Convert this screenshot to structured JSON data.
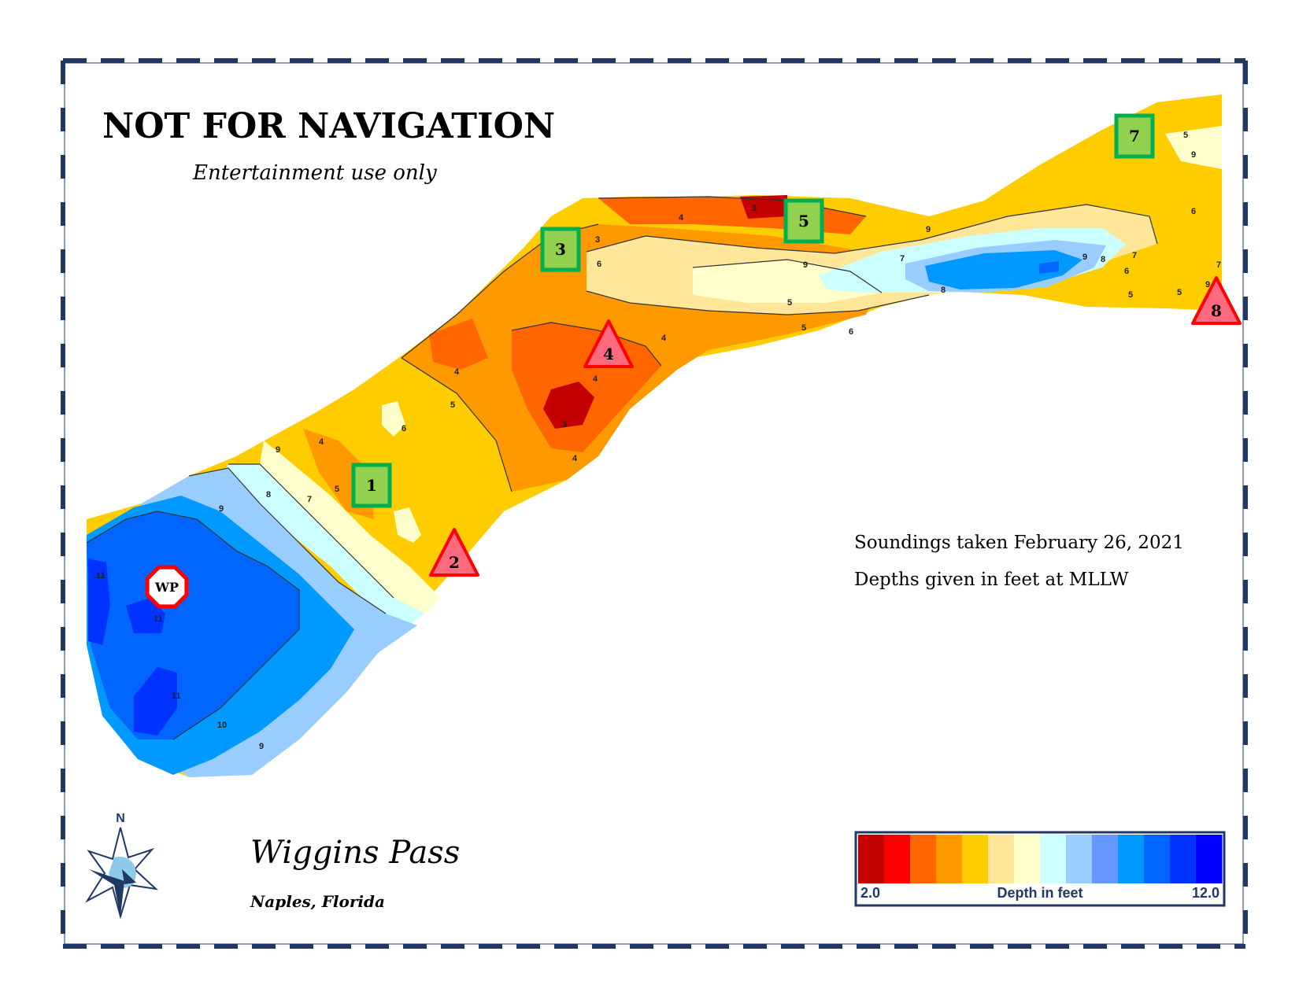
{
  "header": {
    "warning": "NOT FOR NAVIGATION",
    "subtitle": "Entertainment use only"
  },
  "place": {
    "name": "Wiggins Pass",
    "location": "Naples, Florida"
  },
  "notes": {
    "soundings": "Soundings taken February 26, 2021",
    "datum": "Depths given in feet at MLLW"
  },
  "compass": {
    "north_label": "N",
    "icon": "compass-rose-icon"
  },
  "legend": {
    "min_label": "2.0",
    "title": "Depth in feet",
    "max_label": "12.0",
    "min": 2.0,
    "max": 12.0,
    "colors": [
      "#c40000",
      "#ff0000",
      "#ff6600",
      "#ff9900",
      "#ffcc00",
      "#ffe699",
      "#ffffcc",
      "#ccffff",
      "#99ccff",
      "#6699ff",
      "#0099ff",
      "#0066ff",
      "#0033ff",
      "#0000ff"
    ]
  },
  "markers": {
    "green": [
      "1",
      "3",
      "5",
      "7"
    ],
    "red": [
      "2",
      "4",
      "8"
    ],
    "waypoint": "WP"
  },
  "contour_labels": [
    "11",
    "11",
    "11",
    "10",
    "9",
    "9",
    "8",
    "7",
    "9",
    "5",
    "4",
    "6",
    "4",
    "5",
    "6",
    "9",
    "4",
    "3",
    "4",
    "3",
    "4",
    "5",
    "4",
    "3",
    "5",
    "6",
    "7",
    "8",
    "9",
    "8",
    "7",
    "6",
    "5",
    "9",
    "5",
    "9",
    "6",
    "5",
    "9",
    "7"
  ],
  "colors": {
    "frame": "#1f3864",
    "green_marker_fill": "#92d050",
    "green_marker_border": "#00b050",
    "red_marker_fill": "#ff6a7f",
    "red_marker_border": "#ff0000"
  }
}
